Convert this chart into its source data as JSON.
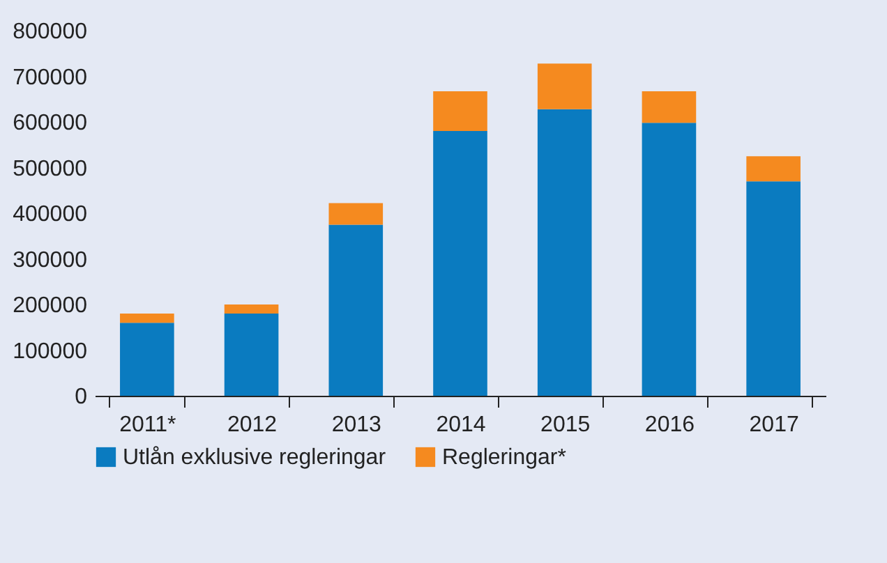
{
  "chart_data": {
    "type": "bar",
    "stacked": true,
    "categories": [
      "2011*",
      "2012",
      "2013",
      "2014",
      "2015",
      "2016",
      "2017"
    ],
    "series": [
      {
        "name": "Utlån exklusive regleringar",
        "color": "#0a7bc0",
        "values": [
          160000,
          180000,
          375000,
          580000,
          628000,
          598000,
          470000
        ]
      },
      {
        "name": "Regleringar*",
        "color": "#f58a1f",
        "values": [
          20000,
          20000,
          47000,
          87000,
          100000,
          69000,
          55000
        ]
      }
    ],
    "ylim": [
      0,
      800000
    ],
    "yticks": [
      0,
      100000,
      200000,
      300000,
      400000,
      500000,
      600000,
      700000,
      800000
    ],
    "grid": false,
    "legend": "bottom"
  }
}
